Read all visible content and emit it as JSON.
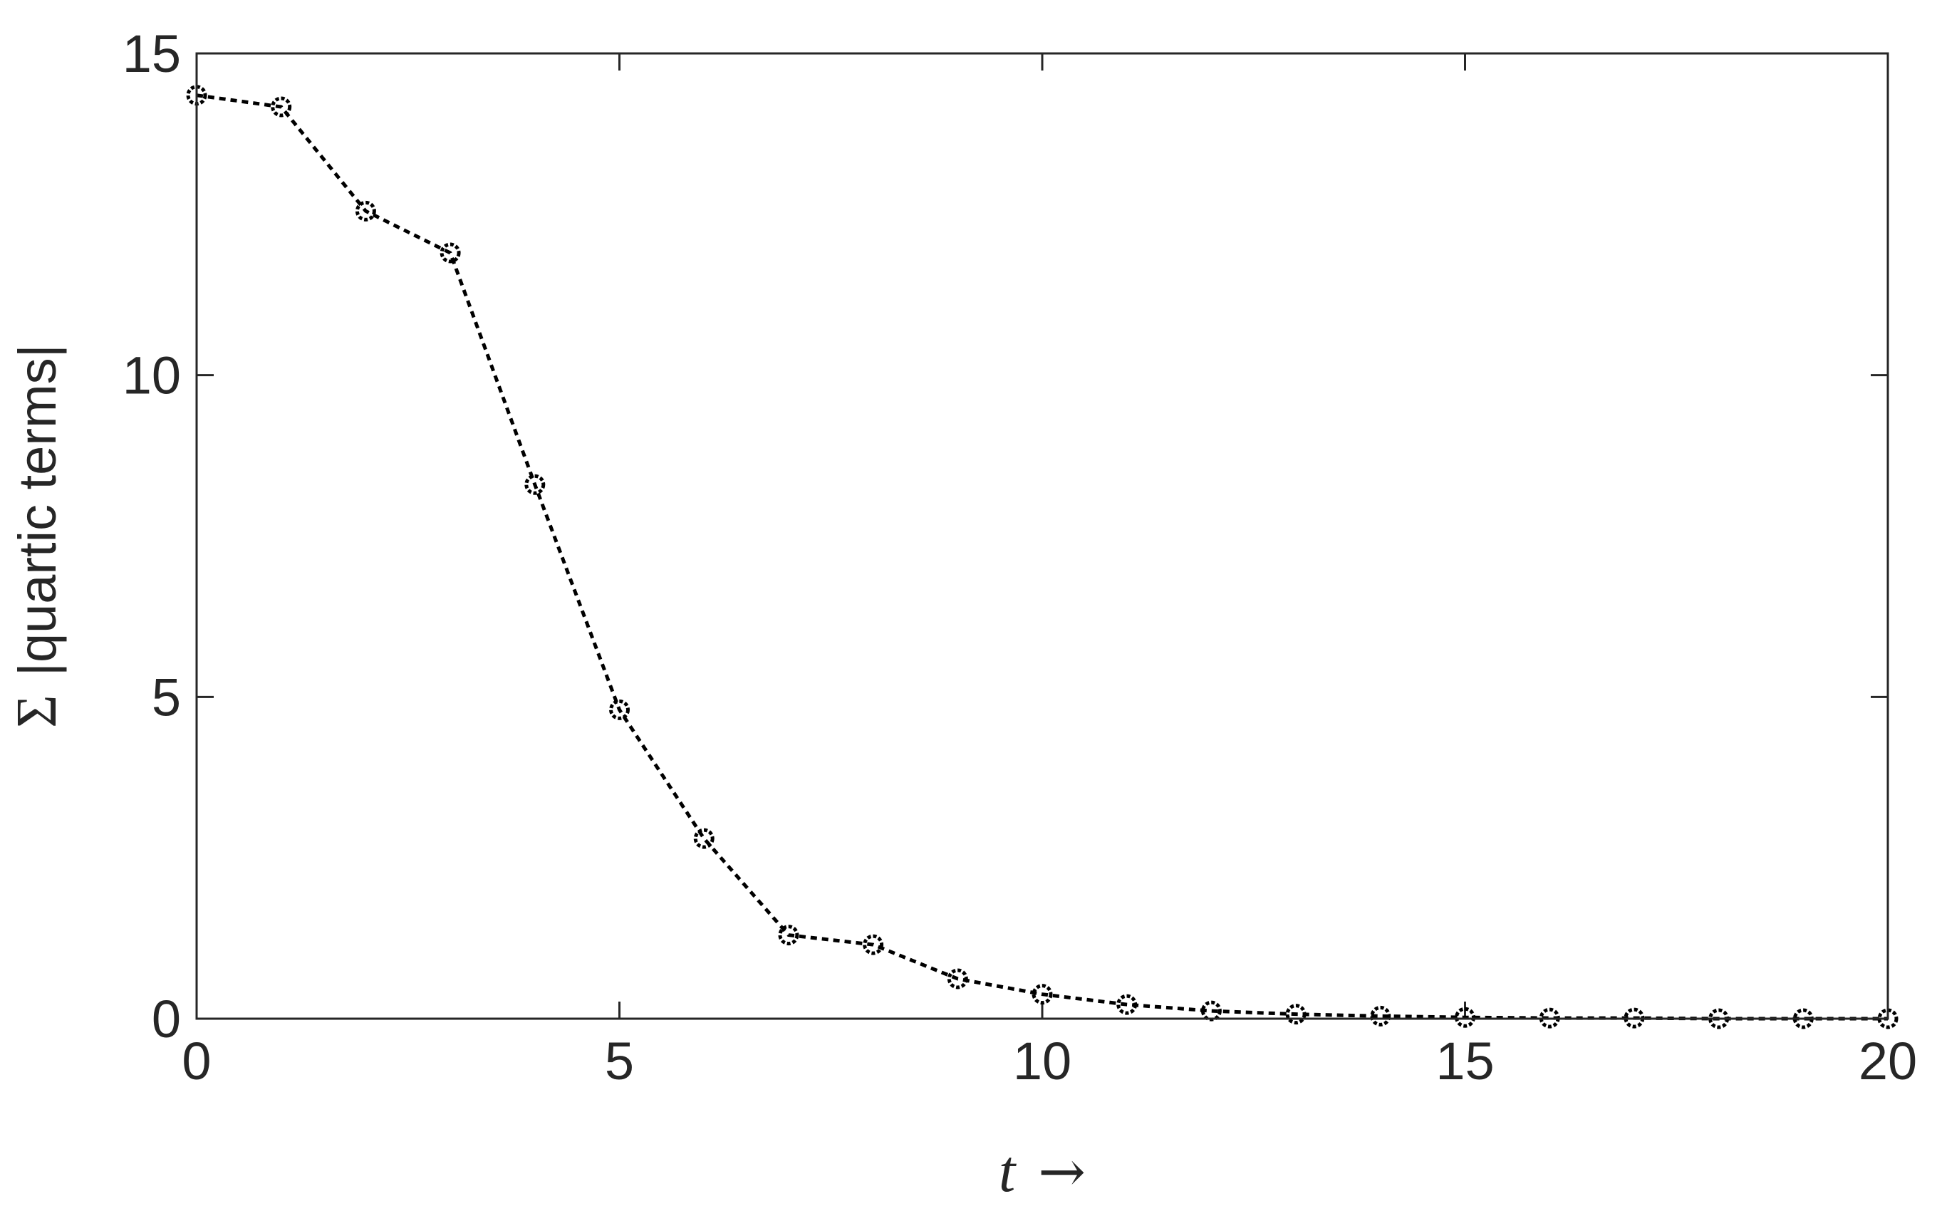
{
  "chart_data": {
    "type": "line",
    "title": "",
    "xlabel": "t →",
    "xlabel_parts": {
      "variable": "t",
      "arrow": "→"
    },
    "ylabel": "Σ |quartic terms|",
    "ylabel_parts": {
      "symbol": "Σ",
      "text": "|quartic terms|"
    },
    "xlim": [
      0,
      20
    ],
    "ylim": [
      0,
      15
    ],
    "xticks": [
      0,
      5,
      10,
      15,
      20
    ],
    "yticks": [
      0,
      5,
      10,
      15
    ],
    "xtick_labels": [
      "0",
      "5",
      "10",
      "15",
      "20"
    ],
    "ytick_labels": [
      "0",
      "5",
      "10",
      "15"
    ],
    "grid": false,
    "legend": "none",
    "series": [
      {
        "line_style": "dotted",
        "marker": "circle",
        "color": "#000000",
        "x": [
          0,
          1,
          2,
          3,
          4,
          5,
          6,
          7,
          8,
          9,
          10,
          11,
          12,
          13,
          14,
          15,
          16,
          17,
          18,
          19,
          20
        ],
        "y": [
          14.35,
          14.17,
          12.55,
          11.9,
          8.3,
          4.8,
          2.8,
          1.3,
          1.15,
          0.62,
          0.38,
          0.22,
          0.12,
          0.07,
          0.04,
          0.02,
          0.01,
          0.01,
          0.0,
          0.0,
          0.0
        ]
      }
    ]
  }
}
